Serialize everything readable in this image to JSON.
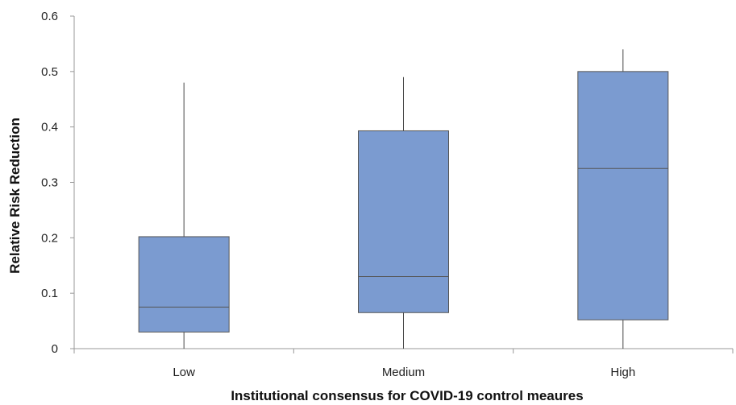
{
  "chart_data": {
    "type": "box",
    "title": "",
    "xlabel": "Institutional consensus for COVID-19 control meaures",
    "ylabel": "Relative Risk Reduction",
    "ylim": [
      0,
      0.6
    ],
    "yticks": [
      "0",
      "0.1",
      "0.2",
      "0.3",
      "0.4",
      "0.5",
      "0.6"
    ],
    "grid": false,
    "categories": [
      "Low",
      "Medium",
      "High"
    ],
    "boxes": [
      {
        "category": "Low",
        "min": 0.0,
        "q1": 0.03,
        "median": 0.075,
        "q3": 0.202,
        "max": 0.48
      },
      {
        "category": "Medium",
        "min": 0.0,
        "q1": 0.065,
        "median": 0.13,
        "q3": 0.393,
        "max": 0.49
      },
      {
        "category": "High",
        "min": 0.0,
        "q1": 0.052,
        "median": 0.325,
        "q3": 0.5,
        "max": 0.54
      }
    ],
    "colors": {
      "box_fill": "#7b9bd0",
      "box_stroke": "#555555",
      "axis": "#999999",
      "whisker": "#444444"
    }
  }
}
